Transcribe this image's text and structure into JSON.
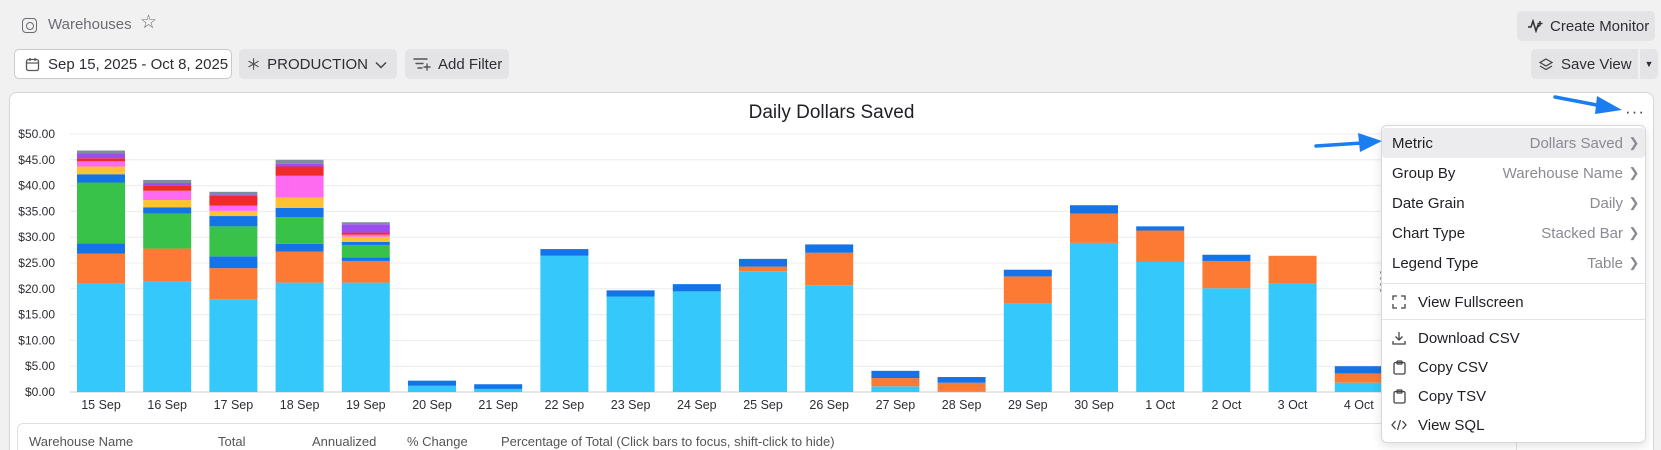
{
  "header": {
    "page_title": "Warehouses",
    "create_monitor_label": "Create Monitor"
  },
  "filters": {
    "date_range": "Sep 15, 2025 - Oct 8, 2025",
    "environment": "PRODUCTION",
    "add_filter_label": "Add Filter",
    "save_view_label": "Save View"
  },
  "menu": {
    "settings": [
      {
        "label": "Metric",
        "value": "Dollars Saved"
      },
      {
        "label": "Group By",
        "value": "Warehouse Name"
      },
      {
        "label": "Date Grain",
        "value": "Daily"
      },
      {
        "label": "Chart Type",
        "value": "Stacked Bar"
      },
      {
        "label": "Legend Type",
        "value": "Table"
      }
    ],
    "view_fullscreen": "View Fullscreen",
    "download_csv": "Download CSV",
    "copy_csv": "Copy CSV",
    "copy_tsv": "Copy TSV",
    "view_sql": "View SQL"
  },
  "table": {
    "columns": [
      "Warehouse Name",
      "Total",
      "Annualized",
      "% Change",
      "Percentage of Total (Click bars to focus, shift-click to hide)"
    ]
  },
  "colors": {
    "cyan": "#35c8fb",
    "orange": "#fd7a35",
    "blue": "#1473e6",
    "green": "#39c24a",
    "purple": "#9b4df0",
    "pink": "#ff6bf0",
    "yellow": "#ffc233",
    "red": "#f02a2a",
    "arrow": "#1a7ef0"
  },
  "chart_data": {
    "type": "bar",
    "stacked": true,
    "title": "Daily Dollars Saved",
    "ylim": [
      0,
      50
    ],
    "ytick_step": 5,
    "ytick_labels": [
      "$0.00",
      "$5.00",
      "$10.00",
      "$15.00",
      "$20.00",
      "$25.00",
      "$30.00",
      "$35.00",
      "$40.00",
      "$45.00",
      "$50.00"
    ],
    "categories": [
      "15 Sep",
      "16 Sep",
      "17 Sep",
      "18 Sep",
      "19 Sep",
      "20 Sep",
      "21 Sep",
      "22 Sep",
      "23 Sep",
      "24 Sep",
      "25 Sep",
      "26 Sep",
      "27 Sep",
      "28 Sep",
      "29 Sep",
      "30 Sep",
      "1 Oct",
      "2 Oct",
      "3 Oct",
      "4 Oct"
    ],
    "series": [
      {
        "color": "#35c8fb",
        "values": [
          21.0,
          21.5,
          18.0,
          21.2,
          21.2,
          1.2,
          0.6,
          26.4,
          18.5,
          19.5,
          23.4,
          20.7,
          1.1,
          0.2,
          17.1,
          28.9,
          25.2,
          20.1,
          21.0,
          1.8
        ]
      },
      {
        "color": "#fd7a35",
        "values": [
          5.8,
          6.3,
          6.0,
          6.0,
          4.2,
          0,
          0,
          0,
          0,
          0,
          0.9,
          6.3,
          1.6,
          1.6,
          5.3,
          5.7,
          6.1,
          5.3,
          5.4,
          1.8
        ]
      },
      {
        "color": "#1473e6",
        "values": [
          2.0,
          0,
          2.3,
          1.5,
          0.7,
          1.0,
          0.9,
          1.3,
          1.2,
          1.4,
          1.5,
          1.6,
          1.4,
          1.1,
          1.3,
          1.6,
          0.8,
          1.2,
          0,
          1.4
        ]
      },
      {
        "color": "#39c24a",
        "values": [
          11.8,
          6.8,
          5.8,
          5.2,
          2.4,
          0,
          0,
          0,
          0,
          0,
          0,
          0,
          0,
          0,
          0,
          0,
          0,
          0,
          0,
          0
        ]
      },
      {
        "color": "#1473e6",
        "values": [
          1.6,
          1.2,
          2.0,
          1.8,
          0.6,
          0,
          0,
          0,
          0,
          0,
          0,
          0,
          0,
          0,
          0,
          0,
          0,
          0,
          0,
          0
        ]
      },
      {
        "color": "#ffc233",
        "values": [
          1.5,
          1.4,
          1.0,
          2.0,
          1.0,
          0,
          0,
          0,
          0,
          0,
          0,
          0,
          0,
          0,
          0,
          0,
          0,
          0,
          0,
          0
        ]
      },
      {
        "color": "#ff6bf0",
        "values": [
          1.0,
          1.8,
          1.0,
          4.2,
          0.4,
          0,
          0,
          0,
          0,
          0,
          0,
          0,
          0,
          0,
          0,
          0,
          0,
          0,
          0,
          0
        ]
      },
      {
        "color": "#f02a2a",
        "values": [
          0.6,
          1.0,
          1.9,
          1.8,
          0.4,
          0,
          0,
          0,
          0,
          0,
          0,
          0,
          0,
          0,
          0,
          0,
          0,
          0,
          0,
          0
        ]
      },
      {
        "color": "#9b4df0",
        "values": [
          1.0,
          0.5,
          0.3,
          0.5,
          1.6,
          0,
          0,
          0,
          0,
          0,
          0,
          0,
          0,
          0,
          0,
          0,
          0,
          0,
          0,
          0
        ]
      },
      {
        "color": "#7d8ea0",
        "values": [
          0.5,
          0.6,
          0.5,
          0.8,
          0.4,
          0,
          0,
          0,
          0,
          0,
          0,
          0,
          0,
          0,
          0,
          0,
          0,
          0,
          0,
          0
        ]
      }
    ],
    "grid": true,
    "legend": "table below chart"
  }
}
